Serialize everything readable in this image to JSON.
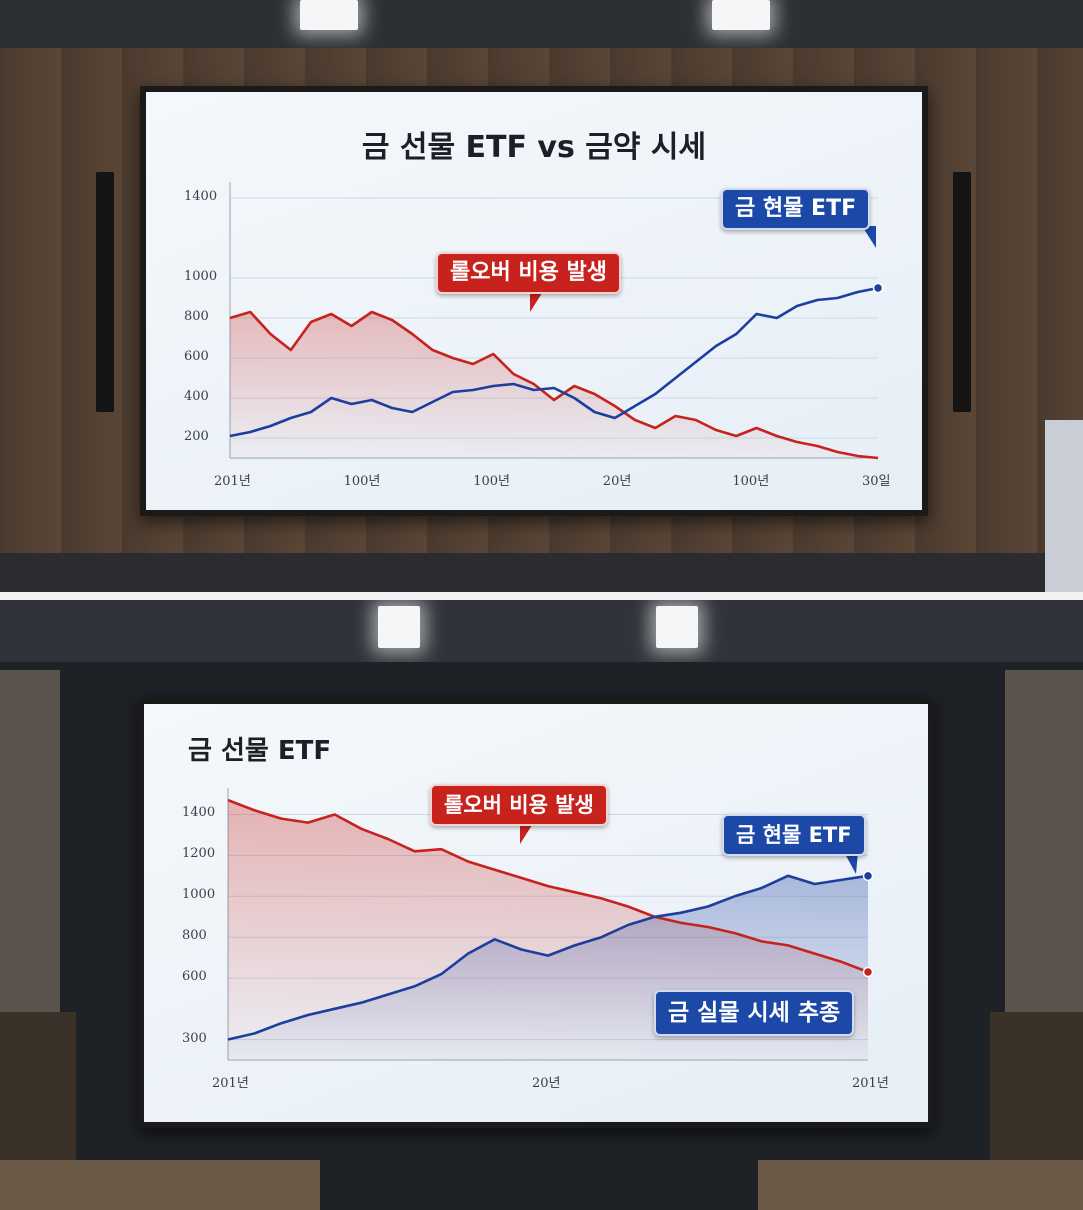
{
  "colors": {
    "futures_red": "#c8221c",
    "spot_blue": "#1c3f9e",
    "callout_blue": "#1c48a8",
    "callout_red": "#c8221c"
  },
  "top_slide": {
    "title": "금 선물 ETF vs 금약 시세",
    "callout_rollover": "롤오버 비용 발생",
    "callout_spot_etf": "금 현물 ETF",
    "y_ticks": [
      "1400",
      "1000",
      "800",
      "600",
      "400",
      "200"
    ],
    "x_ticks": [
      "201년",
      "100년",
      "100년",
      "20년",
      "100년",
      "30일"
    ]
  },
  "bottom_slide": {
    "title": "금 선물 ETF",
    "callout_rollover": "롤오버 비용 발생",
    "callout_spot_etf": "금 현물 ETF",
    "callout_tracking": "금 실물 시세 추종",
    "y_ticks": [
      "1400",
      "1200",
      "1000",
      "800",
      "600",
      "300"
    ],
    "x_ticks": [
      "201년",
      "20년",
      "201년"
    ]
  },
  "chart_data": [
    {
      "type": "line",
      "title": "금 선물 ETF vs 금약 시세",
      "x_tick_labels": [
        "201년",
        "100년",
        "100년",
        "20년",
        "100년",
        "30일"
      ],
      "y_tick_labels": [
        "1400",
        "1000",
        "800",
        "600",
        "400",
        "200"
      ],
      "x": [
        0,
        1,
        2,
        3,
        4,
        5,
        6,
        7,
        8,
        9,
        10,
        11,
        12,
        13,
        14,
        15,
        16,
        17,
        18,
        19,
        20,
        21,
        22,
        23,
        24,
        25,
        26,
        27,
        28,
        29,
        30,
        31,
        32
      ],
      "series": [
        {
          "color": "#c8221c",
          "values": [
            800,
            830,
            720,
            640,
            780,
            820,
            760,
            830,
            790,
            720,
            640,
            600,
            570,
            620,
            520,
            470,
            390,
            460,
            420,
            360,
            290,
            250,
            310,
            290,
            240,
            210,
            250,
            210,
            180,
            160,
            130,
            110,
            100
          ]
        },
        {
          "color": "#1c3f9e",
          "values": [
            210,
            230,
            260,
            300,
            330,
            400,
            370,
            390,
            350,
            330,
            380,
            430,
            440,
            460,
            470,
            440,
            450,
            400,
            330,
            300,
            360,
            420,
            500,
            580,
            660,
            720,
            820,
            800,
            860,
            890,
            900,
            930,
            950
          ]
        }
      ],
      "annotations": [
        "롤오버 비용 발생",
        "금 현물 ETF"
      ]
    },
    {
      "type": "area",
      "title": "금 선물 ETF",
      "x_tick_labels": [
        "201년",
        "20년",
        "201년"
      ],
      "y_tick_labels": [
        "1400",
        "1200",
        "1000",
        "800",
        "600",
        "300"
      ],
      "x": [
        0,
        1,
        2,
        3,
        4,
        5,
        6,
        7,
        8,
        9,
        10,
        11,
        12,
        13,
        14,
        15,
        16,
        17,
        18,
        19,
        20,
        21,
        22,
        23,
        24
      ],
      "series": [
        {
          "color": "#c8221c",
          "values": [
            1470,
            1420,
            1380,
            1360,
            1400,
            1330,
            1280,
            1220,
            1230,
            1170,
            1130,
            1090,
            1050,
            1020,
            990,
            950,
            900,
            870,
            850,
            820,
            780,
            760,
            720,
            680,
            630
          ]
        },
        {
          "color": "#1c3f9e",
          "values": [
            300,
            330,
            380,
            420,
            450,
            480,
            520,
            560,
            620,
            720,
            790,
            740,
            710,
            760,
            800,
            860,
            900,
            920,
            950,
            1000,
            1040,
            1100,
            1060,
            1080,
            1100
          ]
        }
      ],
      "annotations": [
        "롤오버 비용 발생",
        "금 현물 ETF",
        "금 실물 시세 추종"
      ]
    }
  ]
}
